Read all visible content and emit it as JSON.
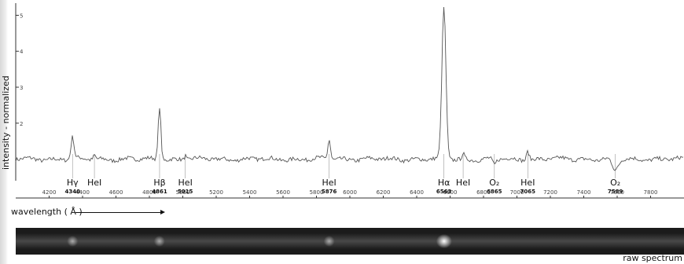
{
  "chart_data": {
    "type": "line",
    "title": "",
    "xlabel": "wavelength  ( Å )",
    "ylabel": "intensity - normalized",
    "xlim": [
      4000,
      8000
    ],
    "ylim": [
      0.4,
      5.25
    ],
    "xticks": [
      4200,
      4400,
      4600,
      4800,
      5000,
      5200,
      5400,
      5600,
      5800,
      6000,
      6200,
      6400,
      6600,
      6800,
      7000,
      7200,
      7400,
      7600,
      7800
    ],
    "yticks": [
      2,
      3,
      4,
      5
    ],
    "baseline": 1.0,
    "series": [
      {
        "lines": [
          {
            "center": 4340,
            "amplitude": 0.6,
            "width": 9
          },
          {
            "center": 4471,
            "amplitude": 0.12,
            "width": 7
          },
          {
            "center": 4861,
            "amplitude": 1.5,
            "width": 8
          },
          {
            "center": 5015,
            "amplitude": 0.12,
            "width": 6
          },
          {
            "center": 5876,
            "amplitude": 0.55,
            "width": 8
          },
          {
            "center": 6563,
            "amplitude": 4.2,
            "width": 12
          },
          {
            "center": 6678,
            "amplitude": 0.15,
            "width": 7
          },
          {
            "center": 6865,
            "amplitude": -0.17,
            "width": 10
          },
          {
            "center": 7065,
            "amplitude": 0.25,
            "width": 8
          },
          {
            "center": 7589,
            "amplitude": -0.32,
            "width": 18
          }
        ]
      }
    ],
    "annotations": [
      {
        "x": 4340,
        "label": "Hγ",
        "value": "4340"
      },
      {
        "x": 4471,
        "label": "HeI",
        "value": ""
      },
      {
        "x": 4861,
        "label": "Hβ",
        "value": "4861"
      },
      {
        "x": 5015,
        "label": "HeI",
        "value": "5015"
      },
      {
        "x": 5876,
        "label": "HeI",
        "value": "5876"
      },
      {
        "x": 6563,
        "label": "Hα",
        "value": "6563"
      },
      {
        "x": 6678,
        "label": "HeI",
        "value": ""
      },
      {
        "x": 6865,
        "label": "O₂",
        "value": "6865"
      },
      {
        "x": 7065,
        "label": "HeI",
        "value": "7065"
      },
      {
        "x": 7589,
        "label": "O₂",
        "value": "7589"
      }
    ],
    "grid": false,
    "colors": {
      "line": "#555555",
      "axis": "#333333",
      "text": "#111111"
    }
  },
  "raw_spectrum": {
    "label": "raw spectrum",
    "bright_spots": [
      4340,
      4861,
      5876,
      6563
    ]
  }
}
